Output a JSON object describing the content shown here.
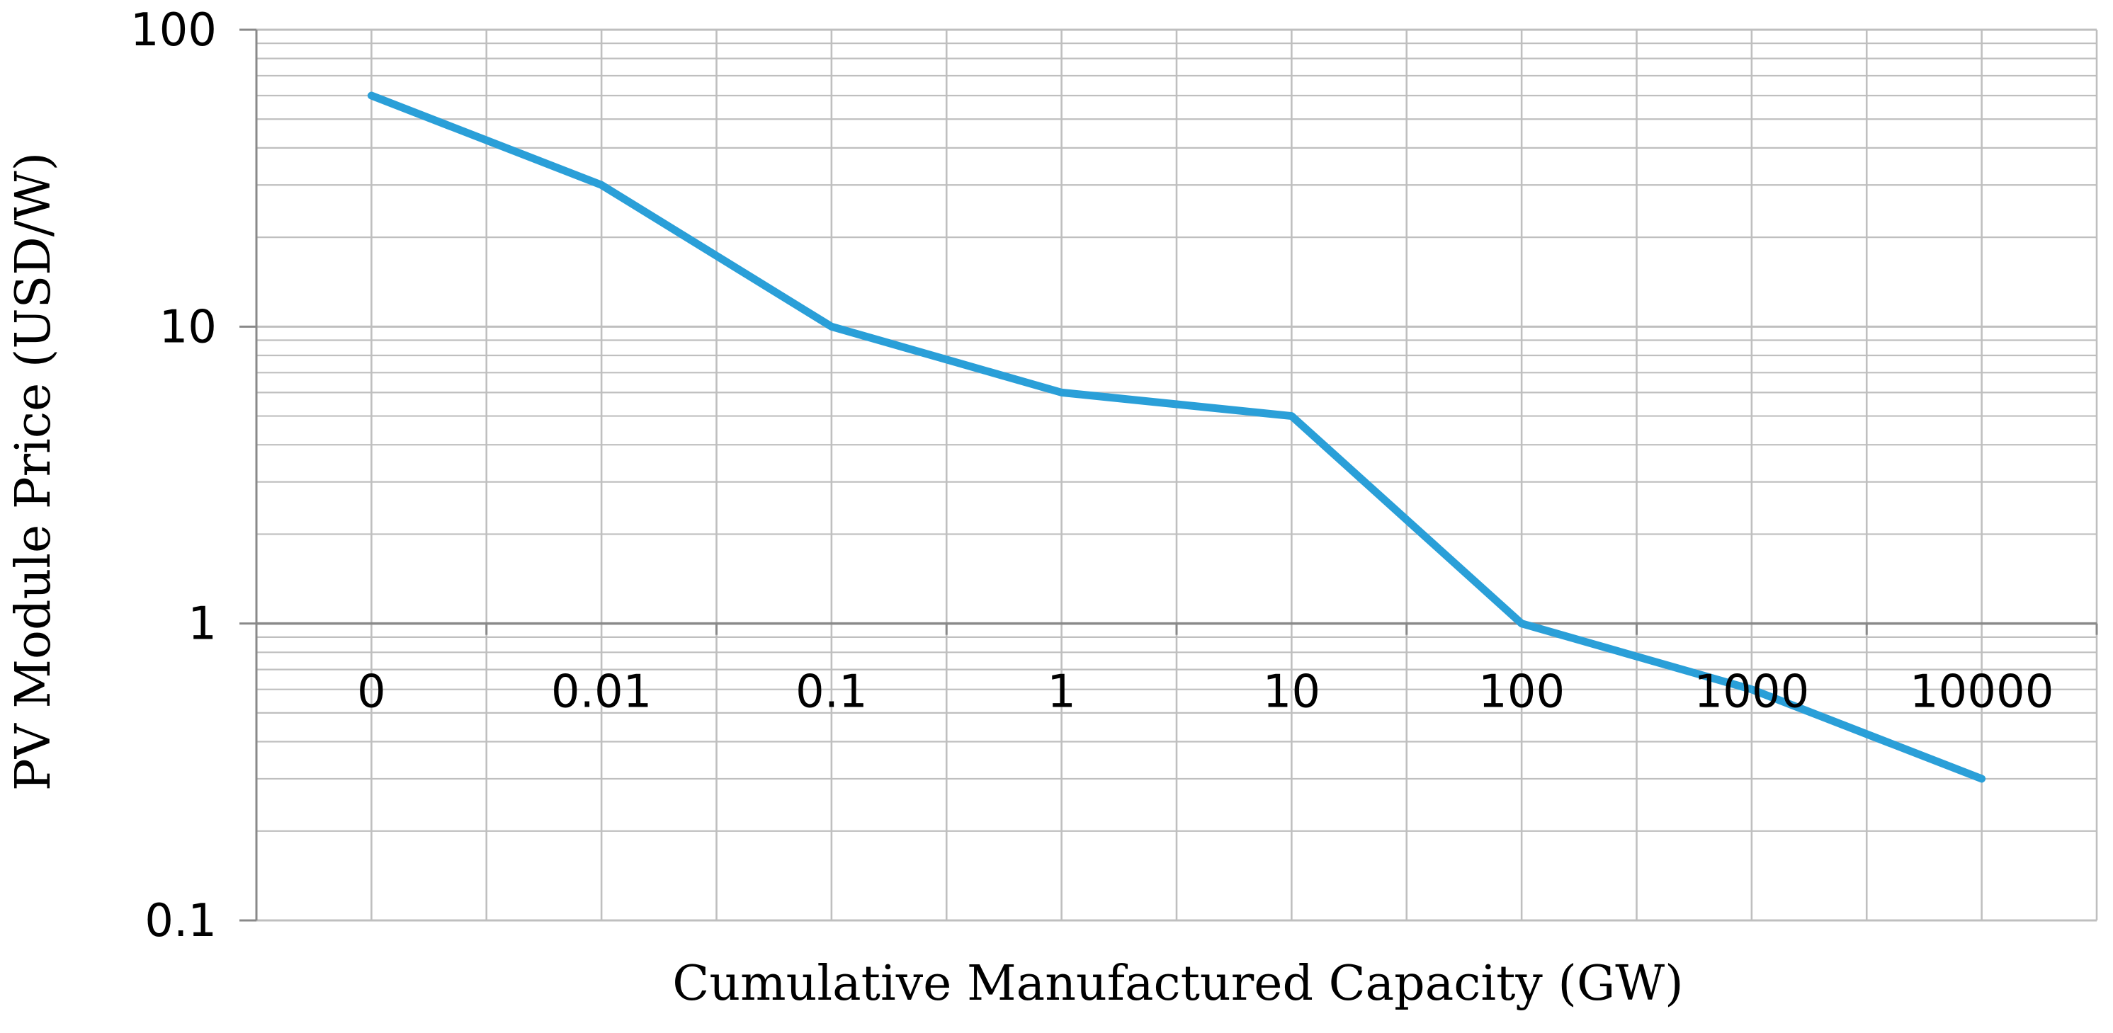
{
  "chart_data": {
    "type": "line",
    "title": "",
    "xlabel": "Cumulative Manufactured Capacity (GW)",
    "ylabel": "PV Module Price (USD/W)",
    "x_scale": "categorical",
    "y_scale": "log",
    "categories": [
      "0",
      "0.01",
      "0.1",
      "1",
      "10",
      "100",
      "1000",
      "10000"
    ],
    "yticks": [
      "0.1",
      "1",
      "10",
      "100"
    ],
    "ylim": [
      0.1,
      100
    ],
    "grid": true,
    "legend": "none",
    "series": [
      {
        "color": "#2a9fd8",
        "values": [
          60,
          30,
          10,
          6,
          5,
          1,
          0.6,
          0.3
        ]
      }
    ],
    "colors": {
      "line": "#2a9fd8",
      "grid": "#bfbfbf",
      "axis": "#898989"
    }
  }
}
